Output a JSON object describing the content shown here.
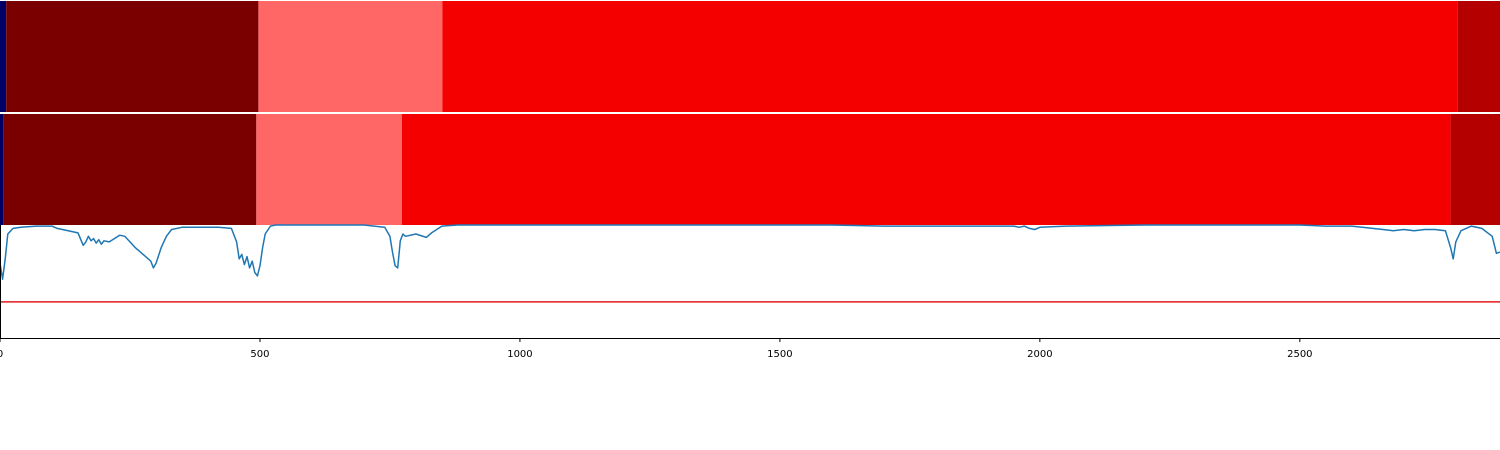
{
  "colors": {
    "segment_start": "#000066",
    "segment_dark_red": "#7a0000",
    "segment_light_red": "#ff6666",
    "segment_red": "#f50000",
    "segment_end": "#b50000",
    "signal_line": "#1f77b4",
    "threshold_line": "#e31a1c",
    "axis": "#000000"
  },
  "chart_data": [
    {
      "type": "heatmap",
      "id": "track-1",
      "xlim": [
        0,
        2885
      ],
      "segments": [
        {
          "start": 0,
          "end": 12,
          "color": "#000066"
        },
        {
          "start": 12,
          "end": 497,
          "color": "#7a0000"
        },
        {
          "start": 497,
          "end": 851,
          "color": "#ff6666"
        },
        {
          "start": 851,
          "end": 2804,
          "color": "#f50000"
        },
        {
          "start": 2804,
          "end": 2885,
          "color": "#b50000"
        }
      ]
    },
    {
      "type": "heatmap",
      "id": "track-2",
      "xlim": [
        0,
        2885
      ],
      "segments": [
        {
          "start": 0,
          "end": 6,
          "color": "#000066"
        },
        {
          "start": 6,
          "end": 493,
          "color": "#7a0000"
        },
        {
          "start": 493,
          "end": 773,
          "color": "#ff6666"
        },
        {
          "start": 773,
          "end": 2790,
          "color": "#f50000"
        },
        {
          "start": 2790,
          "end": 2885,
          "color": "#b50000"
        }
      ]
    },
    {
      "type": "line",
      "id": "signal",
      "xlim": [
        0,
        2885
      ],
      "ylim": [
        0,
        1
      ],
      "xticks": [
        0,
        500,
        1000,
        1500,
        2000,
        2500
      ],
      "xtick_labels": [
        "0",
        "500",
        "1000",
        "1500",
        "2000",
        "2500"
      ],
      "threshold": 0.32,
      "series": [
        {
          "x": [
            0,
            5,
            10,
            15,
            25,
            40,
            70,
            100,
            110,
            150,
            160,
            165,
            170,
            175,
            180,
            185,
            190,
            195,
            200,
            210,
            220,
            230,
            240,
            250,
            260,
            270,
            280,
            290,
            295,
            300,
            305,
            310,
            320,
            330,
            350,
            380,
            420,
            445,
            455,
            460,
            465,
            470,
            475,
            480,
            485,
            490,
            495,
            500,
            505,
            510,
            520,
            530,
            700,
            740,
            750,
            755,
            760,
            765,
            770,
            775,
            780,
            800,
            820,
            830,
            840,
            850,
            880,
            1200,
            1600,
            1700,
            1800,
            1900,
            1950,
            1960,
            1970,
            1980,
            1990,
            2000,
            2050,
            2200,
            2400,
            2500,
            2550,
            2600,
            2620,
            2640,
            2660,
            2680,
            2700,
            2720,
            2740,
            2760,
            2780,
            2790,
            2795,
            2800,
            2810,
            2830,
            2850,
            2870,
            2878,
            2885
          ],
          "y": [
            0.66,
            0.52,
            0.7,
            0.92,
            0.97,
            0.98,
            0.99,
            0.99,
            0.97,
            0.93,
            0.82,
            0.85,
            0.9,
            0.86,
            0.88,
            0.84,
            0.87,
            0.83,
            0.86,
            0.85,
            0.88,
            0.91,
            0.9,
            0.85,
            0.8,
            0.76,
            0.72,
            0.68,
            0.62,
            0.66,
            0.73,
            0.8,
            0.9,
            0.96,
            0.98,
            0.98,
            0.98,
            0.97,
            0.85,
            0.7,
            0.74,
            0.65,
            0.72,
            0.62,
            0.68,
            0.58,
            0.55,
            0.64,
            0.8,
            0.92,
            0.99,
            1.0,
            1.0,
            0.98,
            0.9,
            0.76,
            0.64,
            0.62,
            0.86,
            0.92,
            0.9,
            0.92,
            0.89,
            0.93,
            0.96,
            0.99,
            1.0,
            1.0,
            1.0,
            0.99,
            0.99,
            0.99,
            0.99,
            0.98,
            0.99,
            0.97,
            0.96,
            0.98,
            0.99,
            1.0,
            1.0,
            1.0,
            0.99,
            0.99,
            0.98,
            0.97,
            0.96,
            0.95,
            0.96,
            0.95,
            0.96,
            0.96,
            0.95,
            0.8,
            0.7,
            0.85,
            0.95,
            0.99,
            0.97,
            0.9,
            0.75,
            0.76
          ]
        }
      ]
    }
  ]
}
